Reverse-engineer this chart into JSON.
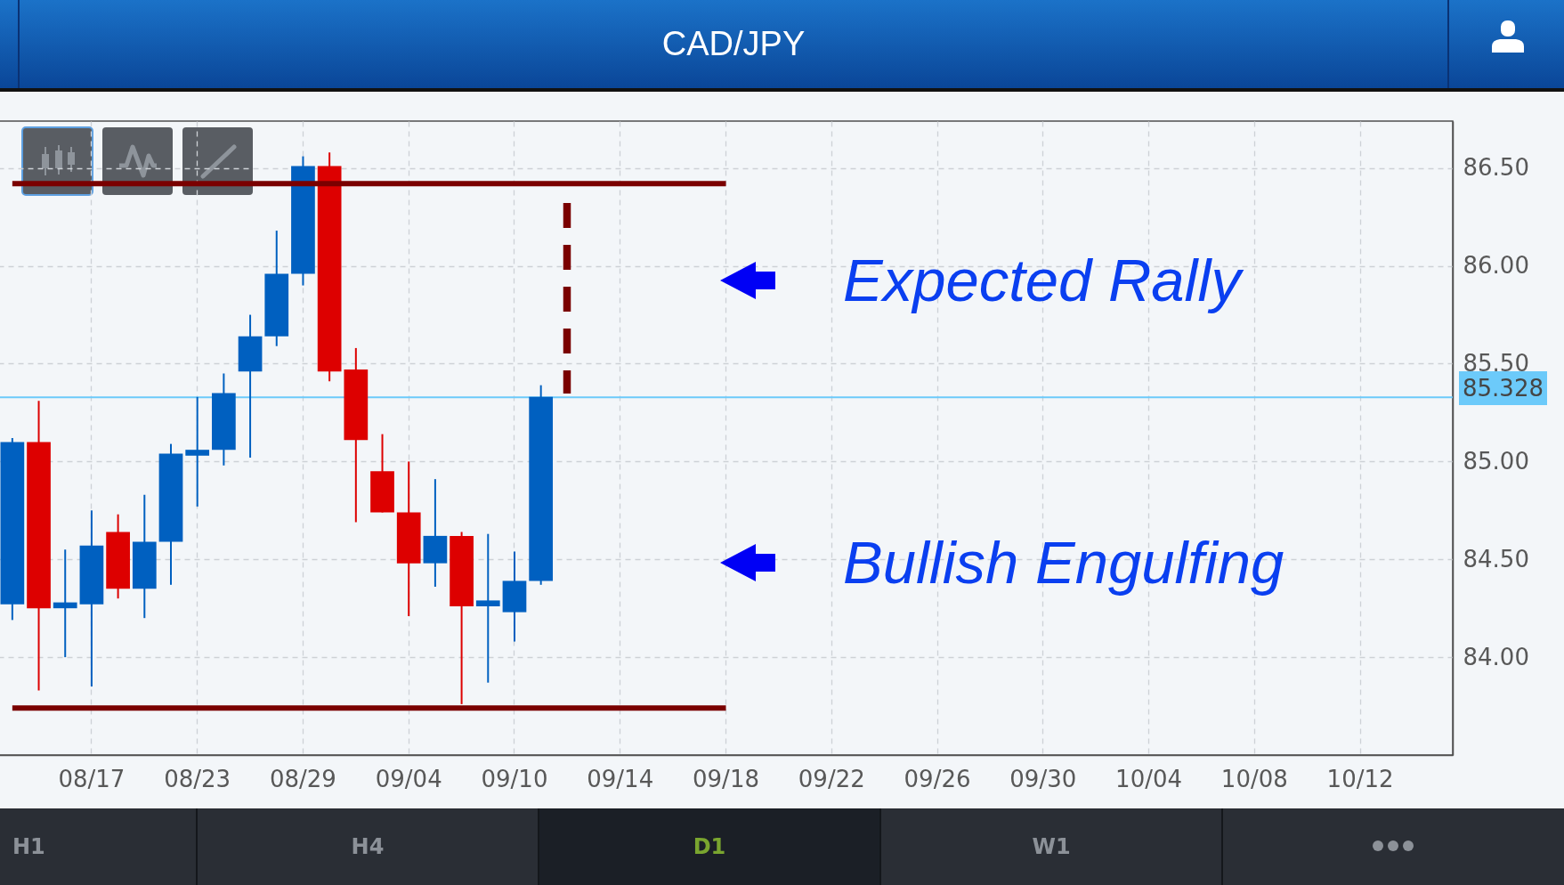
{
  "chart_data": {
    "type": "candlestick",
    "title": "CAD/JPY",
    "categories": [
      null,
      null,
      null,
      "08/17",
      null,
      null,
      null,
      "08/23",
      null,
      null,
      null,
      "08/29",
      null,
      null,
      null,
      "09/04",
      null,
      null,
      null,
      "09/10",
      null,
      null,
      null,
      "09/14",
      null,
      null,
      null,
      "09/18",
      null,
      null,
      null,
      "09/22",
      null,
      null,
      null,
      "09/26",
      null,
      null,
      null,
      "09/30",
      null,
      null,
      null,
      "10/04",
      null,
      null,
      null,
      "10/08",
      null,
      null,
      null,
      "10/12",
      null,
      null,
      null
    ],
    "ohlc": [
      [
        84.27,
        85.12,
        84.19,
        85.1
      ],
      [
        85.1,
        85.31,
        83.83,
        84.25
      ],
      [
        84.25,
        84.55,
        84.0,
        84.28
      ],
      [
        84.27,
        84.75,
        83.85,
        84.57
      ],
      [
        84.64,
        84.73,
        84.3,
        84.35
      ],
      [
        84.35,
        84.83,
        84.2,
        84.59
      ],
      [
        84.59,
        85.09,
        84.37,
        85.04
      ],
      [
        85.03,
        85.33,
        84.77,
        85.06
      ],
      [
        85.06,
        85.45,
        84.98,
        85.35
      ],
      [
        85.46,
        85.75,
        85.02,
        85.64
      ],
      [
        85.64,
        86.18,
        85.59,
        85.96
      ],
      [
        85.96,
        86.56,
        85.9,
        86.51
      ],
      [
        86.51,
        86.58,
        85.41,
        85.46
      ],
      [
        85.47,
        85.58,
        84.69,
        85.11
      ],
      [
        84.95,
        85.14,
        84.74,
        84.74
      ],
      [
        84.74,
        85.0,
        84.21,
        84.48
      ],
      [
        84.48,
        84.91,
        84.36,
        84.62
      ],
      [
        84.62,
        84.64,
        83.76,
        84.26
      ],
      [
        84.26,
        84.63,
        83.87,
        84.29
      ],
      [
        84.23,
        84.54,
        84.08,
        84.39
      ],
      [
        84.39,
        85.39,
        84.37,
        85.33
      ],
      null,
      null,
      null,
      null,
      null,
      null,
      null,
      null,
      null,
      null,
      null,
      null,
      null,
      null,
      null,
      null,
      null,
      null,
      null,
      null,
      null,
      null,
      null,
      null,
      null,
      null,
      null,
      null,
      null,
      null,
      null,
      null,
      null,
      null
    ],
    "colors": [
      "#0060c0",
      "#dd0000",
      "#0060c0",
      "#0060c0",
      "#dd0000",
      "#0060c0",
      "#0060c0",
      "#0060c0",
      "#0060c0",
      "#0060c0",
      "#0060c0",
      "#0060c0",
      "#dd0000",
      "#dd0000",
      "#dd0000",
      "#dd0000",
      "#0060c0",
      "#dd0000",
      "#0060c0",
      "#0060c0",
      "#0060c0",
      null,
      null,
      null,
      null,
      null,
      null,
      null,
      null,
      null,
      null,
      null,
      null,
      null,
      null,
      null,
      null,
      null,
      null,
      null,
      null,
      null,
      null,
      null,
      null,
      null,
      null,
      null,
      null,
      null,
      null,
      null,
      null,
      null,
      null
    ],
    "series": [
      {
        "type": "line",
        "color": "#7a0000",
        "values": [
          86.42,
          86.42,
          86.42,
          86.42,
          86.42,
          86.42,
          86.42,
          86.42,
          86.42,
          86.42,
          86.42,
          86.42,
          86.42,
          86.42,
          86.42,
          86.42,
          86.42,
          86.42,
          86.42,
          86.42,
          86.42,
          86.42,
          86.42,
          86.42,
          86.42,
          86.42,
          86.42,
          86.42,
          null,
          null,
          null,
          null,
          null,
          null,
          null,
          null,
          null,
          null,
          null,
          null,
          null,
          null,
          null,
          null,
          null,
          null,
          null,
          null,
          null,
          null,
          null,
          null,
          null,
          null,
          null
        ]
      },
      {
        "type": "line",
        "color": "#7a0000",
        "values": [
          83.74,
          83.74,
          83.74,
          83.74,
          83.74,
          83.74,
          83.74,
          83.74,
          83.74,
          83.74,
          83.74,
          83.74,
          83.74,
          83.74,
          83.74,
          83.74,
          83.74,
          83.74,
          83.74,
          83.74,
          83.74,
          83.74,
          83.74,
          83.74,
          83.74,
          83.74,
          83.74,
          83.74,
          null,
          null,
          null,
          null,
          null,
          null,
          null,
          null,
          null,
          null,
          null,
          null,
          null,
          null,
          null,
          null,
          null,
          null,
          null,
          null,
          null,
          null,
          null,
          null,
          null,
          null,
          null
        ]
      }
    ],
    "ref_lines": [
      {
        "axis": "y",
        "value": 85.328,
        "label": "85.328",
        "color": "#6ccafa"
      }
    ],
    "annotations": [
      "Expected Rally",
      "Bullish Engulfing",
      "H1",
      "H4",
      "D1",
      "W1"
    ],
    "ylim": [
      83.5,
      86.74
    ],
    "yticks": [
      {
        "value": 84,
        "label": "84.00"
      },
      {
        "value": 84.5,
        "label": "84.50"
      },
      {
        "value": 85,
        "label": "85.00"
      },
      {
        "value": 85.5,
        "label": "85.50"
      },
      {
        "value": 86,
        "label": "86.00"
      },
      {
        "value": 86.5,
        "label": "86.50"
      }
    ],
    "grid": true
  }
}
